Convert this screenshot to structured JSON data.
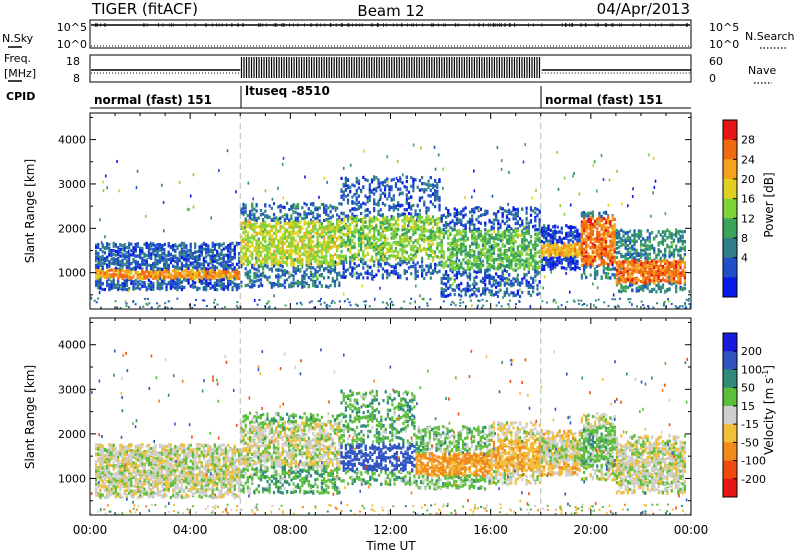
{
  "header": {
    "radar": "TIGER (fitACF)",
    "beam": "Beam 12",
    "date": "04/Apr/2013"
  },
  "status_panels": {
    "nsky": {
      "label": "N.Sky",
      "ticks": [
        "10^5",
        "10^0"
      ],
      "right_label": "N.Search",
      "right_ticks": [
        "10^5",
        "10^0"
      ]
    },
    "freq": {
      "label_line1": "Freq.",
      "label_line2": "[MHz]",
      "ticks": [
        "18",
        "8"
      ],
      "right_label": "Nave",
      "right_ticks": [
        "60",
        "0"
      ]
    },
    "cpid": {
      "label": "CPID",
      "segments": [
        {
          "name": "normal (fast) 151",
          "start_h": 0,
          "end_h": 6
        },
        {
          "name": "ltuseq -8510",
          "start_h": 6,
          "end_h": 18
        },
        {
          "name": "normal (fast) 151",
          "start_h": 18,
          "end_h": 24
        }
      ]
    }
  },
  "chart_data": [
    {
      "type": "heatmap",
      "title": "",
      "quantity": "Power",
      "ylabel": "Slant Range [km]",
      "ylim": [
        180,
        4600
      ],
      "yticks": [
        1000,
        2000,
        3000,
        4000
      ],
      "xlim_hours": [
        0,
        24
      ],
      "colorbar": {
        "label": "Power [dB]",
        "range": [
          0,
          32
        ],
        "ticks": [
          4,
          8,
          12,
          16,
          20,
          24,
          28
        ],
        "colors": [
          "#0a1ae6",
          "#1f4fc9",
          "#2f7f8a",
          "#3aa55a",
          "#7ed23a",
          "#e0d020",
          "#f5a21c",
          "#f06a10",
          "#e51616"
        ]
      },
      "segments": [
        {
          "t_start": 0.2,
          "t_end": 6,
          "core_range_km": [
            900,
            1100
          ],
          "band_top_km": 1700,
          "band_bottom_km": 650,
          "core_power_db": 24,
          "edge_power_db": 6
        },
        {
          "t_start": 6,
          "t_end": 10,
          "core_range_km": [
            1200,
            2200
          ],
          "band_top_km": 2600,
          "band_bottom_km": 700,
          "core_power_db": 18,
          "edge_power_db": 8
        },
        {
          "t_start": 10,
          "t_end": 14,
          "core_range_km": [
            1300,
            2300
          ],
          "band_top_km": 3200,
          "band_bottom_km": 900,
          "core_power_db": 16,
          "edge_power_db": 6
        },
        {
          "t_start": 14,
          "t_end": 18,
          "core_range_km": [
            1100,
            2000
          ],
          "band_top_km": 2500,
          "band_bottom_km": 500,
          "core_power_db": 14,
          "edge_power_db": 6
        },
        {
          "t_start": 18,
          "t_end": 19.6,
          "core_range_km": [
            1400,
            1700
          ],
          "band_top_km": 2100,
          "band_bottom_km": 1100,
          "core_power_db": 22,
          "edge_power_db": 4
        },
        {
          "t_start": 19.6,
          "t_end": 21,
          "core_range_km": [
            1200,
            2300
          ],
          "band_top_km": 2400,
          "band_bottom_km": 900,
          "core_power_db": 26,
          "edge_power_db": 8
        },
        {
          "t_start": 21,
          "t_end": 23.8,
          "core_range_km": [
            800,
            1300
          ],
          "band_top_km": 2000,
          "band_bottom_km": 600,
          "core_power_db": 26,
          "edge_power_db": 10
        }
      ]
    },
    {
      "type": "heatmap",
      "title": "",
      "quantity": "Velocity",
      "ylabel": "Slant Range [km]",
      "ylim": [
        180,
        4600
      ],
      "yticks": [
        1000,
        2000,
        3000,
        4000
      ],
      "xlim_hours": [
        0,
        24
      ],
      "xticks": [
        "00:00",
        "04:00",
        "08:00",
        "12:00",
        "16:00",
        "20:00",
        "00:00"
      ],
      "xlabel": "Time UT",
      "colorbar": {
        "label_main": "Velocity [m s",
        "label_exp": "-1",
        "label_close": "]",
        "ticks": [
          "200",
          "100",
          "50",
          "15",
          "-15",
          "-50",
          "-100",
          "-200"
        ],
        "colors": [
          "#1a1adc",
          "#2f55c0",
          "#2f8a78",
          "#5cbf3c",
          "#cfcfcf",
          "#f2bf3a",
          "#f08a1a",
          "#f04a10",
          "#e51616"
        ]
      },
      "segments": [
        {
          "t_start": 0.2,
          "t_end": 6,
          "core_range_km": [
            900,
            1700
          ],
          "band_top_km": 1800,
          "band_bottom_km": 600,
          "core_velocity": 0,
          "edge_velocity": 0
        },
        {
          "t_start": 6,
          "t_end": 10,
          "core_range_km": [
            1300,
            2300
          ],
          "band_top_km": 2500,
          "band_bottom_km": 700,
          "core_velocity": 0,
          "edge_velocity": 40
        },
        {
          "t_start": 10,
          "t_end": 13,
          "core_range_km": [
            1200,
            1800
          ],
          "band_top_km": 3000,
          "band_bottom_km": 900,
          "core_velocity": 150,
          "edge_velocity": 40
        },
        {
          "t_start": 13,
          "t_end": 16,
          "core_range_km": [
            1100,
            1600
          ],
          "band_top_km": 2200,
          "band_bottom_km": 800,
          "core_velocity": -60,
          "edge_velocity": 30
        },
        {
          "t_start": 16,
          "t_end": 18,
          "core_range_km": [
            1200,
            1900
          ],
          "band_top_km": 2300,
          "band_bottom_km": 900,
          "core_velocity": -40,
          "edge_velocity": 0
        },
        {
          "t_start": 18,
          "t_end": 19.6,
          "core_range_km": [
            1400,
            1900
          ],
          "band_top_km": 2100,
          "band_bottom_km": 1100,
          "core_velocity": 0,
          "edge_velocity": -30
        },
        {
          "t_start": 19.6,
          "t_end": 21,
          "core_range_km": [
            1300,
            2200
          ],
          "band_top_km": 2500,
          "band_bottom_km": 1000,
          "core_velocity": 30,
          "edge_velocity": 0
        },
        {
          "t_start": 21,
          "t_end": 23.8,
          "core_range_km": [
            900,
            1800
          ],
          "band_top_km": 2000,
          "band_bottom_km": 700,
          "core_velocity": 0,
          "edge_velocity": 0
        }
      ]
    }
  ]
}
